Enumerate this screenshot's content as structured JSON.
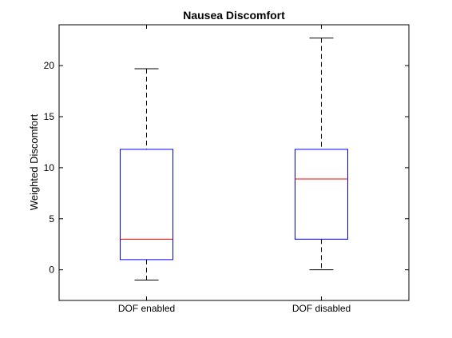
{
  "chart_data": {
    "type": "box",
    "title": "Nausea Discomfort",
    "xlabel": "",
    "ylabel": "Weighted Discomfort",
    "ylim": [
      -3,
      24
    ],
    "yticks": [
      0,
      5,
      10,
      15,
      20
    ],
    "grid": false,
    "categories": [
      "DOF enabled",
      "DOF disabled"
    ],
    "boxes": [
      {
        "category": "DOF enabled",
        "whisker_low": -1,
        "q1": 1,
        "median": 3,
        "q3": 11.8,
        "whisker_high": 19.7
      },
      {
        "category": "DOF disabled",
        "whisker_low": 0,
        "q1": 3,
        "median": 8.9,
        "q3": 11.8,
        "whisker_high": 22.7
      }
    ],
    "colors": {
      "box": "#0000ff",
      "median": "#ff0000",
      "whisker": "#000000",
      "axes": "#000000"
    }
  }
}
